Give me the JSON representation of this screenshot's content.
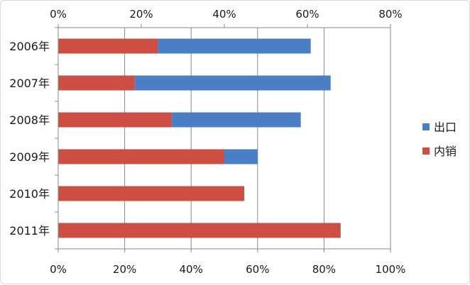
{
  "chart_data": {
    "type": "bar",
    "orientation": "horizontal",
    "stacked": true,
    "categories": [
      "2006年",
      "2007年",
      "2008年",
      "2009年",
      "2010年",
      "2011年"
    ],
    "series": [
      {
        "name": "内销",
        "color": "#cd4f44",
        "values": [
          30,
          23,
          34,
          50,
          56,
          85
        ]
      },
      {
        "name": "出口",
        "color": "#4a7fc6",
        "values": [
          46,
          59,
          39,
          10,
          0,
          0
        ]
      }
    ],
    "axis_top": {
      "ticks": [
        "0%",
        "20%",
        "40%",
        "60%",
        "80%"
      ],
      "range": [
        0,
        80
      ]
    },
    "axis_bottom": {
      "ticks": [
        "0%",
        "20%",
        "40%",
        "60%",
        "80%",
        "100%"
      ],
      "range": [
        0,
        100
      ]
    },
    "grid": true,
    "legend": {
      "position": "right",
      "order": [
        "出口",
        "内销"
      ]
    }
  }
}
